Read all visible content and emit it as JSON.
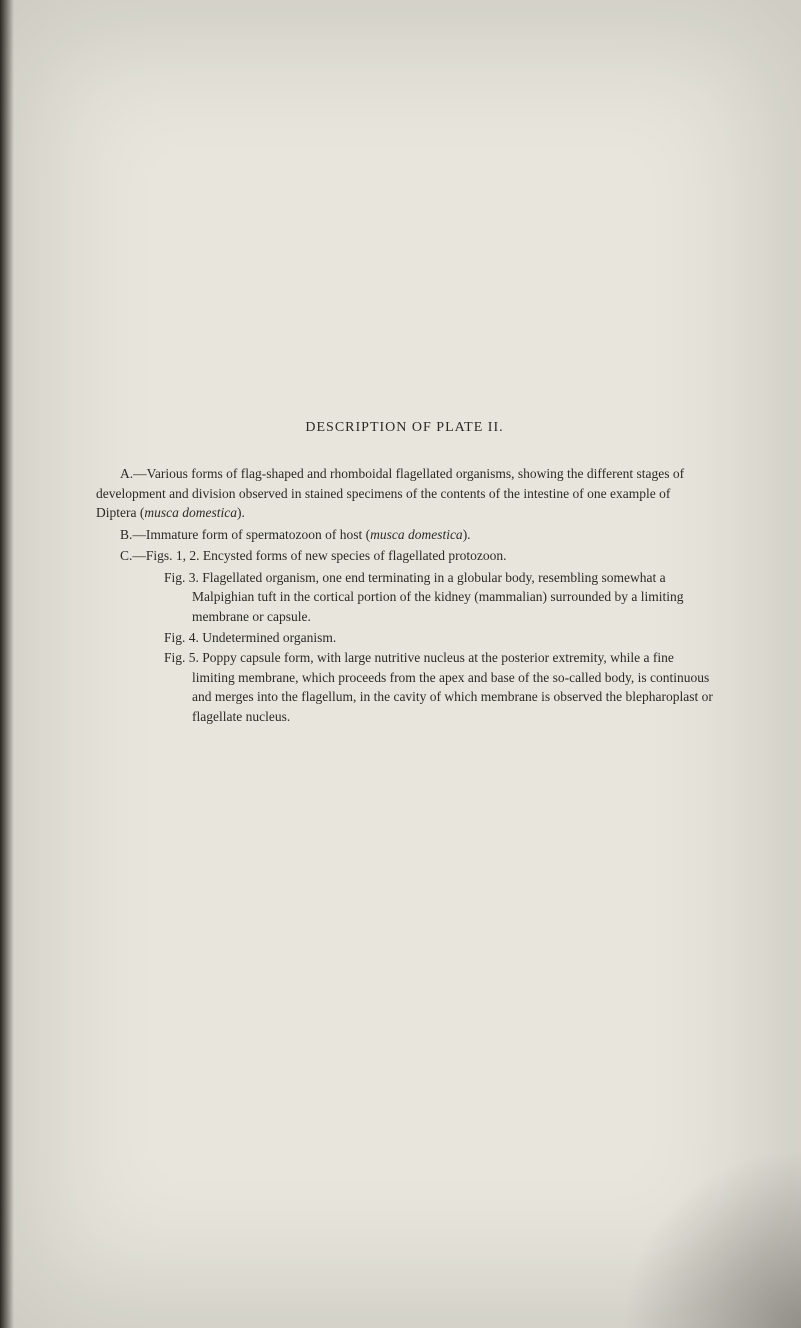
{
  "page": {
    "background_color": "#e8e6dc",
    "text_color": "#2a2a26",
    "font_family": "Georgia, serif",
    "body_fontsize": 13.5,
    "title_fontsize": 14
  },
  "title": "DESCRIPTION OF PLATE II.",
  "section_a_html": "A.—Various forms of flag-shaped and rhomboidal flagellated organisms, showing the different stages of development and division observed in stained specimens of the contents of the intestine of one example of Diptera (<span class=\"italic\">musca domestica</span>).",
  "section_b_html": "B.—Immature form of spermatozoon of host (<span class=\"italic\">musca domestica</span>).",
  "section_c": "C.—Figs. 1, 2. Encysted forms of new species of flagellated protozoon.",
  "fig3": "Fig. 3. Flagellated organism, one end terminating in a globular body, resembling somewhat a Malpighian tuft in the cortical portion of the kidney (mammalian) surrounded by a limiting membrane or capsule.",
  "fig4": "Fig. 4. Undetermined organism.",
  "fig5": "Fig. 5. Poppy capsule form, with large nutritive nucleus at the posterior extremity, while a fine limiting membrane, which proceeds from the apex and base of the so-called body, is continuous and merges into the flagellum, in the cavity of which membrane is observed the blepharoplast or flagellate nucleus."
}
